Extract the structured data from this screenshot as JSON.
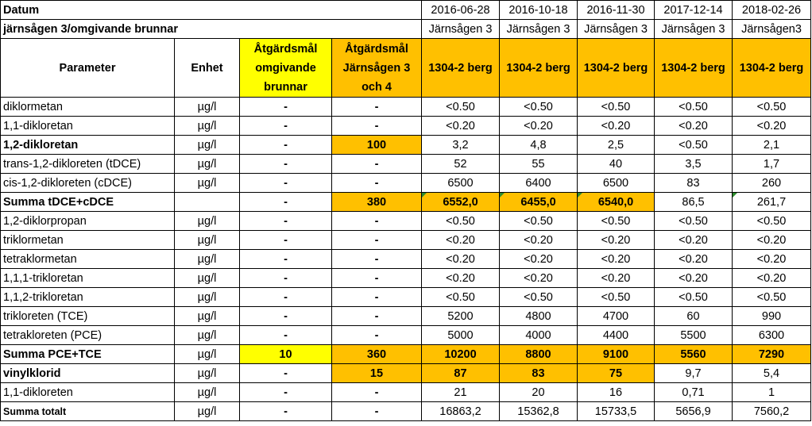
{
  "header": {
    "datum_label": "Datum",
    "location_label": "järnsågen 3/omgivande brunnar",
    "dates": [
      "2016-06-28",
      "2016-10-18",
      "2016-11-30",
      "2017-12-14",
      "2018-02-26"
    ],
    "locations": [
      "Järnsågen 3",
      "Järnsågen 3",
      "Järnsågen 3",
      "Järnsågen 3",
      "Järnsågen3"
    ],
    "col_parameter": "Parameter",
    "col_unit": "Enhet",
    "col_target_wells": "Åtgärdsmål omgivande brunnar",
    "col_target_jarnsagen": "Åtgärdsmål Järnsågen 3 och 4",
    "wells": [
      "1304-2 berg",
      "1304-2 berg",
      "1304-2 berg",
      "1304-2 berg",
      "1304-2 berg"
    ]
  },
  "rows": [
    {
      "param": "diklormetan",
      "unit": "µg/l",
      "t1": "-",
      "t2": "-",
      "vals": [
        "<0.50",
        "<0.50",
        "<0.50",
        "<0.50",
        "<0.50"
      ]
    },
    {
      "param": "1,1-dikloretan",
      "unit": "µg/l",
      "t1": "-",
      "t2": "-",
      "vals": [
        "<0.20",
        "<0.20",
        "<0.20",
        "<0.20",
        "<0.20"
      ]
    },
    {
      "param": "1,2-dikloretan",
      "unit": "µg/l",
      "t1": "-",
      "t2": "100",
      "vals": [
        "3,2",
        "4,8",
        "2,5",
        "<0.50",
        "2,1"
      ]
    },
    {
      "param": "trans-1,2-dikloreten (tDCE)",
      "unit": "µg/l",
      "t1": "-",
      "t2": "-",
      "vals": [
        "52",
        "55",
        "40",
        "3,5",
        "1,7"
      ]
    },
    {
      "param": "cis-1,2-dikloreten (cDCE)",
      "unit": "µg/l",
      "t1": "-",
      "t2": "-",
      "vals": [
        "6500",
        "6400",
        "6500",
        "83",
        "260"
      ]
    },
    {
      "param": "Summa tDCE+cDCE",
      "unit": "",
      "t1": "-",
      "t2": "380",
      "vals": [
        "6552,0",
        "6455,0",
        "6540,0",
        "86,5",
        "261,7"
      ]
    },
    {
      "param": "1,2-diklorpropan",
      "unit": "µg/l",
      "t1": "-",
      "t2": "-",
      "vals": [
        "<0.50",
        "<0.50",
        "<0.50",
        "<0.50",
        "<0.50"
      ]
    },
    {
      "param": "triklormetan",
      "unit": "µg/l",
      "t1": "-",
      "t2": "-",
      "vals": [
        "<0.20",
        "<0.20",
        "<0.20",
        "<0.20",
        "<0.20"
      ]
    },
    {
      "param": "tetraklormetan",
      "unit": "µg/l",
      "t1": "-",
      "t2": "-",
      "vals": [
        "<0.20",
        "<0.20",
        "<0.20",
        "<0.20",
        "<0.20"
      ]
    },
    {
      "param": "1,1,1-trikloretan",
      "unit": "µg/l",
      "t1": "-",
      "t2": "-",
      "vals": [
        "<0.20",
        "<0.20",
        "<0.20",
        "<0.20",
        "<0.20"
      ]
    },
    {
      "param": "1,1,2-trikloretan",
      "unit": "µg/l",
      "t1": "-",
      "t2": "-",
      "vals": [
        "<0.50",
        "<0.50",
        "<0.50",
        "<0.50",
        "<0.50"
      ]
    },
    {
      "param": "trikloreten (TCE)",
      "unit": "µg/l",
      "t1": "-",
      "t2": "-",
      "vals": [
        "5200",
        "4800",
        "4700",
        "60",
        "990"
      ]
    },
    {
      "param": "tetrakloreten (PCE)",
      "unit": "µg/l",
      "t1": "-",
      "t2": "-",
      "vals": [
        "5000",
        "4000",
        "4400",
        "5500",
        "6300"
      ]
    },
    {
      "param": "Summa PCE+TCE",
      "unit": "µg/l",
      "t1": "10",
      "t2": "360",
      "vals": [
        "10200",
        "8800",
        "9100",
        "5560",
        "7290"
      ]
    },
    {
      "param": "vinylklorid",
      "unit": "µg/l",
      "t1": "-",
      "t2": "15",
      "vals": [
        "87",
        "83",
        "75",
        "9,7",
        "5,4"
      ]
    },
    {
      "param": "1,1-dikloreten",
      "unit": "µg/l",
      "t1": "-",
      "t2": "-",
      "vals": [
        "21",
        "20",
        "16",
        "0,71",
        "1"
      ]
    },
    {
      "param": "Summa totalt",
      "unit": "µg/l",
      "t1": "-",
      "t2": "-",
      "vals": [
        "16863,2",
        "15362,8",
        "15733,5",
        "5656,9",
        "7560,2"
      ]
    }
  ],
  "colors": {
    "highlight_yellow": "#ffff00",
    "highlight_orange": "#ffc000",
    "comment_marker": "#2e8b2e"
  }
}
